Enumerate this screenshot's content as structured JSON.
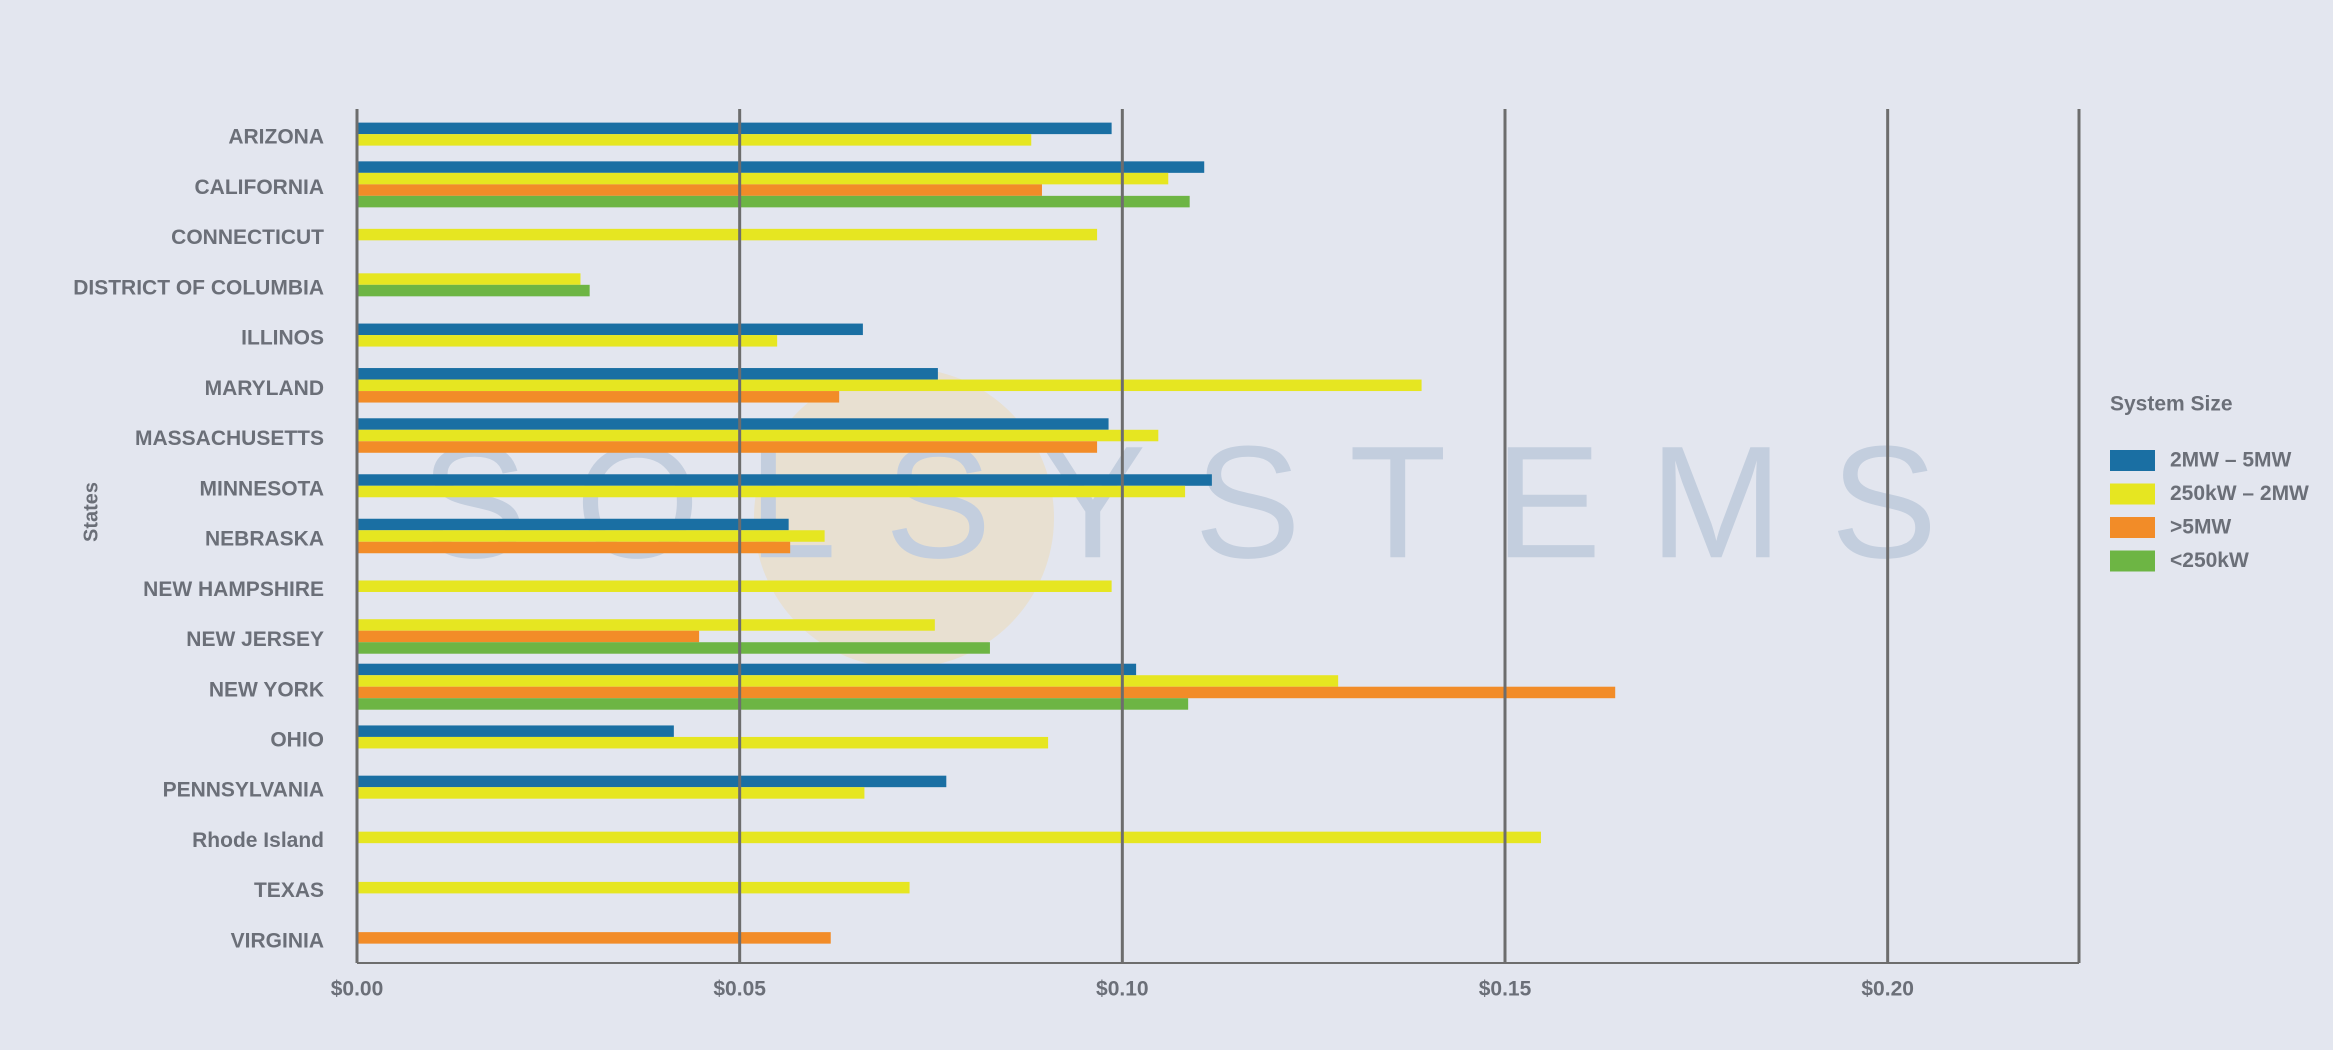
{
  "chart_data": {
    "type": "bar",
    "orientation": "horizontal",
    "watermark": "SOLSYSTEMS",
    "y_label": "States",
    "legend_title": "System Size",
    "legend_position": "right",
    "categories": [
      "ARIZONA",
      "CALIFORNIA",
      "CONNECTICUT",
      "DISTRICT OF COLUMBIA",
      "ILLINOS",
      "MARYLAND",
      "MASSACHUSETTS",
      "MINNESOTA",
      "NEBRASKA",
      "NEW HAMPSHIRE",
      "NEW JERSEY",
      "NEW YORK",
      "OHIO",
      "PENNSYLVANIA",
      "Rhode Island",
      "TEXAS",
      "VIRGINIA"
    ],
    "series": [
      {
        "name": "2MW – 5MW",
        "color": "#1a6fa3",
        "values": [
          0.0986,
          0.1107,
          null,
          null,
          0.0661,
          0.0759,
          0.0982,
          0.1117,
          0.0564,
          null,
          null,
          0.1018,
          0.0414,
          0.077,
          null,
          null,
          null
        ]
      },
      {
        "name": "250kW – 2MW",
        "color": "#e6e621",
        "values": [
          0.0881,
          0.106,
          0.0967,
          0.0292,
          0.0549,
          0.1391,
          0.1047,
          0.1082,
          0.0611,
          0.0986,
          0.0755,
          0.1282,
          0.0903,
          0.0663,
          0.1547,
          0.0722,
          null
        ]
      },
      {
        "name": ">5MW",
        "color": "#f28c28",
        "values": [
          null,
          0.0895,
          null,
          null,
          null,
          0.063,
          0.0967,
          null,
          0.0566,
          null,
          0.0447,
          0.1644,
          null,
          null,
          null,
          null,
          0.0619
        ]
      },
      {
        "name": "<250kW",
        "color": "#6db544",
        "values": [
          null,
          0.1088,
          null,
          0.0304,
          null,
          null,
          null,
          null,
          null,
          null,
          0.0827,
          0.1086,
          null,
          null,
          null,
          null,
          null
        ]
      }
    ],
    "xlim": [
      0,
      0.225
    ],
    "xticks": [
      {
        "value": 0,
        "label": "$0.00"
      },
      {
        "value": 0.05,
        "label": "$0.05"
      },
      {
        "value": 0.1,
        "label": "$0.10"
      },
      {
        "value": 0.15,
        "label": "$0.15"
      },
      {
        "value": 0.2,
        "label": "$0.20"
      }
    ],
    "grid": true
  }
}
